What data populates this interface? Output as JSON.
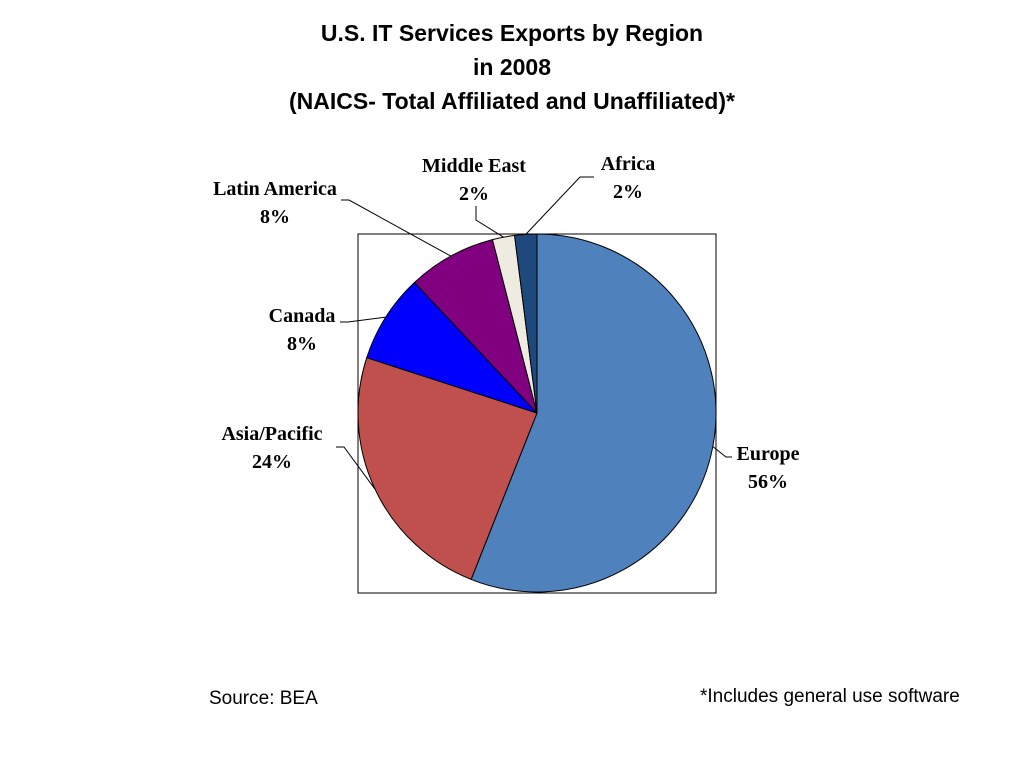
{
  "title_lines": [
    "U.S. IT Services Exports by Region",
    "in 2008",
    "(NAICS- Total Affiliated and Unaffiliated)*"
  ],
  "source": "Source: BEA",
  "footnote": "*Includes general use software",
  "chart_data": {
    "type": "pie",
    "title": "U.S. IT Services Exports by Region in 2008 (NAICS- Total Affiliated and Unaffiliated)*",
    "slices": [
      {
        "label": "Europe",
        "value": 56,
        "display": "56%",
        "color": "#4F81BD"
      },
      {
        "label": "Asia/Pacific",
        "value": 24,
        "display": "24%",
        "color": "#C0504D"
      },
      {
        "label": "Canada",
        "value": 8,
        "display": "8%",
        "color": "#0000FF"
      },
      {
        "label": "Latin America",
        "value": 8,
        "display": "8%",
        "color": "#800080"
      },
      {
        "label": "Middle East",
        "value": 2,
        "display": "2%",
        "color": "#EEECE1"
      },
      {
        "label": "Africa",
        "value": 2,
        "display": "2%",
        "color": "#1F497D"
      }
    ],
    "start": "12 o'clock",
    "direction": "clockwise",
    "legend": "none",
    "data_labels": "outside with leader lines"
  }
}
